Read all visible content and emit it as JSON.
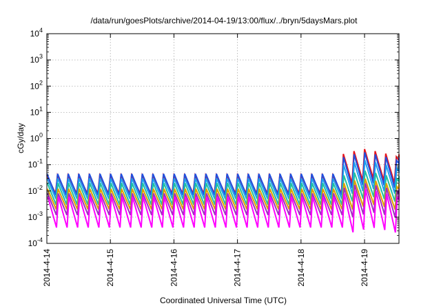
{
  "chart_data": {
    "type": "line",
    "title": "/data/run/goesPlots/archive/2014-04-19/13:00/flux/../bryn/5daysMars.plot",
    "xlabel": "Coordinated Universal Time (UTC)",
    "ylabel": "cGy/day",
    "xlim": [
      "2014-04-14",
      "2014-04-19 13:00"
    ],
    "yscale": "log",
    "ylim": [
      0.0001,
      10000
    ],
    "grid": true,
    "x_ticks": [
      "2014-4-14",
      "2014-4-15",
      "2014-4-16",
      "2014-4-17",
      "2014-4-18",
      "2014-4-19"
    ],
    "y_ticks": [
      {
        "base": "10",
        "exp": "-4"
      },
      {
        "base": "10",
        "exp": "-3"
      },
      {
        "base": "10",
        "exp": "-2"
      },
      {
        "base": "10",
        "exp": "-1"
      },
      {
        "base": "10",
        "exp": "0"
      },
      {
        "base": "10",
        "exp": "1"
      },
      {
        "base": "10",
        "exp": "2"
      },
      {
        "base": "10",
        "exp": "3"
      },
      {
        "base": "10",
        "exp": "4"
      }
    ],
    "cycles_per_day": 6,
    "event_start": "2014-04-18 15:00",
    "series": [
      {
        "color": "#e8141c",
        "quiet_peak": 0.04,
        "quiet_trough": 0.008,
        "event_peak": 0.4,
        "event_trough": 0.03
      },
      {
        "color": "#2050e0",
        "quiet_peak": 0.045,
        "quiet_trough": 0.007,
        "event_peak": 0.3,
        "event_trough": 0.02
      },
      {
        "color": "#1ea0f0",
        "quiet_peak": 0.03,
        "quiet_trough": 0.005,
        "event_peak": 0.15,
        "event_trough": 0.012
      },
      {
        "color": "#20c0a0",
        "quiet_peak": 0.02,
        "quiet_trough": 0.003,
        "event_peak": 0.06,
        "event_trough": 0.006
      },
      {
        "color": "#e0a000",
        "quiet_peak": 0.012,
        "quiet_trough": 0.002,
        "event_peak": 0.03,
        "event_trough": 0.003
      },
      {
        "color": "#a030c0",
        "quiet_peak": 0.008,
        "quiet_trough": 0.0012,
        "event_peak": 0.02,
        "event_trough": 0.0015
      },
      {
        "color": "#ff00ff",
        "quiet_peak": 0.006,
        "quiet_trough": 0.0004,
        "event_peak": 0.012,
        "event_trough": 0.0004
      }
    ]
  }
}
